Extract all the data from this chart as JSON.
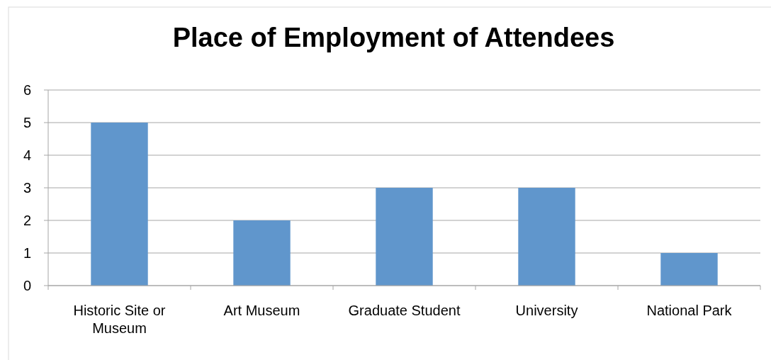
{
  "chart_data": {
    "type": "bar",
    "title": "Place of Employment of Attendees",
    "categories": [
      "Historic Site or Museum",
      "Art Museum",
      "Graduate Student",
      "University",
      "National Park"
    ],
    "values": [
      5,
      2,
      3,
      3,
      1
    ],
    "color": "#6096cc",
    "ylim": [
      0,
      6
    ],
    "yticks": [
      0,
      1,
      2,
      3,
      4,
      5,
      6
    ],
    "grid": "y"
  }
}
